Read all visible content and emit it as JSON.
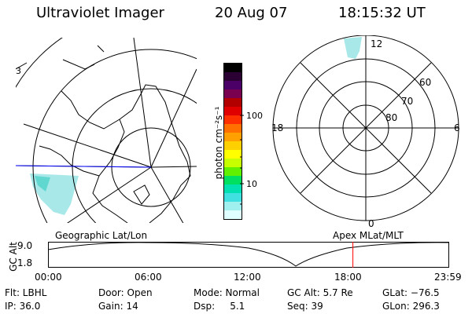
{
  "header": {
    "instrument": "Ultraviolet Imager",
    "date": "20 Aug 07",
    "time": "18:15:32 UT"
  },
  "geo_panel": {
    "title": "Geographic Lat/Lon",
    "partial_label": "3"
  },
  "colorbar": {
    "unit": "photon cm⁻²s⁻¹",
    "ticks": [
      "100",
      "10"
    ],
    "colors": [
      "#000000",
      "#2b0033",
      "#4a0066",
      "#7a0050",
      "#b20000",
      "#e00000",
      "#ff3000",
      "#ff7000",
      "#ffa000",
      "#ffd000",
      "#ffff00",
      "#c8ff00",
      "#60f000",
      "#00e060",
      "#00e0b0",
      "#40e0e0",
      "#a0f0f0",
      "#e0ffff"
    ]
  },
  "polar_panel": {
    "title": "Apex MLat/MLT",
    "mlt_labels": [
      "12",
      "18",
      "6",
      "0"
    ],
    "lat_labels": [
      "60",
      "70",
      "80"
    ]
  },
  "timeline": {
    "axis_label": "GC Alt",
    "y_ticks": [
      "9.0",
      "1.8"
    ],
    "x_ticks": [
      "00:00",
      "06:00",
      "12:00",
      "18:00",
      "23:59"
    ],
    "current_time_fraction": 0.76,
    "marker_color": "#ff0000"
  },
  "status": {
    "row1": [
      {
        "key": "flt",
        "text": "Flt: LBHL"
      },
      {
        "key": "door",
        "text": "Door: Open"
      },
      {
        "key": "mode",
        "text": "Mode: Normal"
      },
      {
        "key": "gcalt",
        "text": "GC Alt: 5.7 Re"
      },
      {
        "key": "glat",
        "text": "GLat: −76.5"
      }
    ],
    "row2": [
      {
        "key": "ip",
        "text": "IP: 36.0"
      },
      {
        "key": "gain",
        "text": "Gain: 14"
      },
      {
        "key": "dsp",
        "text": "Dsp:     5.1"
      },
      {
        "key": "seq",
        "text": "Seq: 39"
      },
      {
        "key": "glon",
        "text": "GLon: 296.3"
      }
    ]
  }
}
